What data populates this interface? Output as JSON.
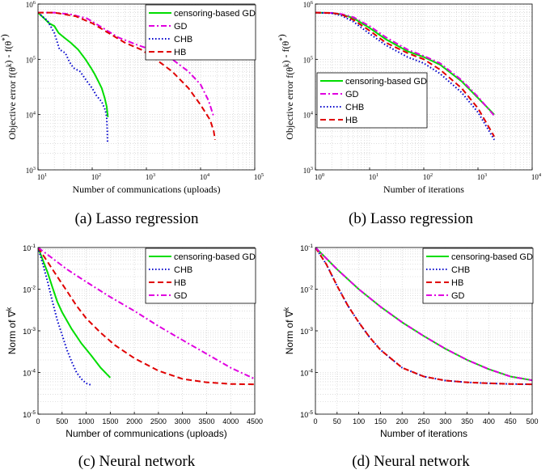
{
  "captions": [
    "(a) Lasso regression",
    "(b) Lasso regression",
    "(c) Neural network",
    "(d) Neural network"
  ],
  "colors": {
    "green": "#00dd00",
    "magenta": "#e000e0",
    "blue": "#0000cc",
    "red": "#e00000"
  },
  "chart_data": [
    {
      "type": "line",
      "caption": "(a) Lasso regression",
      "xscale": "log",
      "yscale": "log",
      "xlim": [
        10,
        100000
      ],
      "ylim": [
        1000,
        1000000
      ],
      "xticks": [
        10,
        100,
        1000,
        10000,
        100000
      ],
      "yticks": [
        1000,
        10000,
        100000,
        1000000
      ],
      "xlabel": "Number of communications (uploads)",
      "ylabel": "Objective error f(θ^k) - f(θ^*)",
      "grid": true,
      "legend_position": "top-right",
      "series": [
        {
          "name": "censoring-based GD",
          "color": "green",
          "dash": "solid",
          "points": [
            [
              10,
              700000
            ],
            [
              13,
              550000
            ],
            [
              16,
              450000
            ],
            [
              20,
              400000
            ],
            [
              24,
              300000
            ],
            [
              30,
              250000
            ],
            [
              40,
              200000
            ],
            [
              55,
              150000
            ],
            [
              75,
              100000
            ],
            [
              95,
              70000
            ],
            [
              110,
              55000
            ],
            [
              130,
              40000
            ],
            [
              150,
              30000
            ],
            [
              170,
              20000
            ],
            [
              185,
              14000
            ],
            [
              192,
              10000
            ],
            [
              195,
              9000
            ]
          ]
        },
        {
          "name": "GD",
          "color": "magenta",
          "dash": "dashdot",
          "points": [
            [
              10,
              700000
            ],
            [
              20,
              700000
            ],
            [
              40,
              650000
            ],
            [
              80,
              550000
            ],
            [
              150,
              380000
            ],
            [
              300,
              250000
            ],
            [
              700,
              180000
            ],
            [
              1500,
              140000
            ],
            [
              3000,
              100000
            ],
            [
              6000,
              60000
            ],
            [
              10000,
              35000
            ],
            [
              14000,
              18000
            ],
            [
              17000,
              10000
            ],
            [
              18000,
              9000
            ]
          ]
        },
        {
          "name": "CHB",
          "color": "blue",
          "dash": "dotted",
          "points": [
            [
              10,
              700000
            ],
            [
              15,
              500000
            ],
            [
              20,
              300000
            ],
            [
              25,
              150000
            ],
            [
              32,
              130000
            ],
            [
              38,
              90000
            ],
            [
              45,
              70000
            ],
            [
              60,
              60000
            ],
            [
              80,
              40000
            ],
            [
              100,
              30000
            ],
            [
              120,
              22000
            ],
            [
              150,
              17000
            ],
            [
              175,
              12000
            ],
            [
              185,
              9000
            ],
            [
              190,
              5000
            ],
            [
              192,
              3000
            ]
          ]
        },
        {
          "name": "HB",
          "color": "red",
          "dash": "dashed",
          "points": [
            [
              10,
              700000
            ],
            [
              20,
              700000
            ],
            [
              50,
              600000
            ],
            [
              100,
              450000
            ],
            [
              200,
              300000
            ],
            [
              400,
              200000
            ],
            [
              800,
              150000
            ],
            [
              1500,
              100000
            ],
            [
              3000,
              60000
            ],
            [
              6000,
              30000
            ],
            [
              10000,
              15000
            ],
            [
              15000,
              8000
            ],
            [
              17500,
              5000
            ],
            [
              18500,
              3500
            ]
          ]
        }
      ]
    },
    {
      "type": "line",
      "caption": "(b) Lasso regression",
      "xscale": "log",
      "yscale": "log",
      "xlim": [
        1,
        10000
      ],
      "ylim": [
        1000,
        1000000
      ],
      "xticks": [
        1,
        10,
        100,
        1000,
        10000
      ],
      "yticks": [
        1000,
        10000,
        100000,
        1000000
      ],
      "xlabel": "Number of iterations",
      "ylabel": "Objective error f(θ^k) - f(θ^*)",
      "grid": true,
      "legend_position": "middle-left",
      "series": [
        {
          "name": "censoring-based GD",
          "color": "green",
          "dash": "solid",
          "points": [
            [
              1,
              700000
            ],
            [
              2,
              690000
            ],
            [
              3,
              650000
            ],
            [
              5,
              560000
            ],
            [
              10,
              370000
            ],
            [
              20,
              230000
            ],
            [
              50,
              140000
            ],
            [
              100,
              110000
            ],
            [
              200,
              80000
            ],
            [
              500,
              40000
            ],
            [
              1000,
              20000
            ],
            [
              2000,
              10000
            ]
          ]
        },
        {
          "name": "GD",
          "color": "magenta",
          "dash": "dashdot",
          "points": [
            [
              1,
              700000
            ],
            [
              2,
              690000
            ],
            [
              3,
              660000
            ],
            [
              5,
              580000
            ],
            [
              10,
              400000
            ],
            [
              20,
              250000
            ],
            [
              50,
              150000
            ],
            [
              100,
              115000
            ],
            [
              200,
              85000
            ],
            [
              500,
              42000
            ],
            [
              1000,
              21000
            ],
            [
              2000,
              9500
            ]
          ]
        },
        {
          "name": "CHB",
          "color": "blue",
          "dash": "dotted",
          "points": [
            [
              1,
              700000
            ],
            [
              2,
              680000
            ],
            [
              3,
              620000
            ],
            [
              5,
              480000
            ],
            [
              10,
              290000
            ],
            [
              20,
              180000
            ],
            [
              50,
              110000
            ],
            [
              100,
              85000
            ],
            [
              200,
              55000
            ],
            [
              500,
              25000
            ],
            [
              1000,
              11000
            ],
            [
              2000,
              3500
            ]
          ]
        },
        {
          "name": "HB",
          "color": "red",
          "dash": "dashed",
          "points": [
            [
              1,
              700000
            ],
            [
              2,
              690000
            ],
            [
              3,
              650000
            ],
            [
              5,
              520000
            ],
            [
              10,
              330000
            ],
            [
              20,
              200000
            ],
            [
              50,
              130000
            ],
            [
              100,
              100000
            ],
            [
              200,
              65000
            ],
            [
              500,
              30000
            ],
            [
              1000,
              13000
            ],
            [
              2000,
              4000
            ]
          ]
        }
      ]
    },
    {
      "type": "line",
      "caption": "(c) Neural network",
      "xscale": "linear",
      "yscale": "log",
      "xlim": [
        0,
        4500
      ],
      "ylim": [
        1e-05,
        0.1
      ],
      "xticks": [
        0,
        500,
        1000,
        1500,
        2000,
        2500,
        3000,
        3500,
        4000,
        4500
      ],
      "yticks": [
        1e-05,
        0.0001,
        0.001,
        0.01,
        0.1
      ],
      "xlabel": "Number of communications (uploads)",
      "ylabel": "Norm of ∇^k",
      "grid": true,
      "legend_position": "top-right",
      "series": [
        {
          "name": "censoring-based GD",
          "color": "green",
          "dash": "solid",
          "points": [
            [
              0,
              0.1
            ],
            [
              100,
              0.05
            ],
            [
              200,
              0.025
            ],
            [
              300,
              0.011
            ],
            [
              400,
              0.005
            ],
            [
              500,
              0.0028
            ],
            [
              700,
              0.0011
            ],
            [
              900,
              0.0005
            ],
            [
              1100,
              0.00026
            ],
            [
              1300,
              0.00013
            ],
            [
              1500,
              7.5e-05
            ]
          ]
        },
        {
          "name": "CHB",
          "color": "blue",
          "dash": "dotted",
          "points": [
            [
              0,
              0.1
            ],
            [
              100,
              0.04
            ],
            [
              200,
              0.015
            ],
            [
              300,
              0.005
            ],
            [
              400,
              0.0018
            ],
            [
              500,
              0.0008
            ],
            [
              600,
              0.00035
            ],
            [
              700,
              0.00018
            ],
            [
              800,
              0.0001
            ],
            [
              900,
              7e-05
            ],
            [
              1000,
              5.5e-05
            ],
            [
              1100,
              5e-05
            ]
          ]
        },
        {
          "name": "HB",
          "color": "red",
          "dash": "dashed",
          "points": [
            [
              0,
              0.1
            ],
            [
              200,
              0.045
            ],
            [
              400,
              0.02
            ],
            [
              600,
              0.009
            ],
            [
              800,
              0.004
            ],
            [
              1000,
              0.002
            ],
            [
              1300,
              0.0009
            ],
            [
              1600,
              0.00045
            ],
            [
              2000,
              0.00022
            ],
            [
              2500,
              0.00011
            ],
            [
              3000,
              7e-05
            ],
            [
              3500,
              5.8e-05
            ],
            [
              4000,
              5.3e-05
            ],
            [
              4500,
              5.2e-05
            ]
          ]
        },
        {
          "name": "GD",
          "color": "magenta",
          "dash": "dashdot",
          "points": [
            [
              0,
              0.1
            ],
            [
              300,
              0.055
            ],
            [
              600,
              0.03
            ],
            [
              1000,
              0.015
            ],
            [
              1500,
              0.0065
            ],
            [
              2000,
              0.003
            ],
            [
              2500,
              0.0013
            ],
            [
              3000,
              0.0006
            ],
            [
              3500,
              0.00028
            ],
            [
              4000,
              0.00013
            ],
            [
              4500,
              7e-05
            ]
          ]
        }
      ]
    },
    {
      "type": "line",
      "caption": "(d) Neural network",
      "xscale": "linear",
      "yscale": "log",
      "xlim": [
        0,
        500
      ],
      "ylim": [
        1e-05,
        0.1
      ],
      "xticks": [
        0,
        50,
        100,
        150,
        200,
        250,
        300,
        350,
        400,
        450,
        500
      ],
      "yticks": [
        1e-05,
        0.0001,
        0.001,
        0.01,
        0.1
      ],
      "xlabel": "Number of iterations",
      "ylabel": "Norm of ∇^k",
      "grid": true,
      "legend_position": "top-right",
      "series": [
        {
          "name": "censoring-based GD",
          "color": "green",
          "dash": "solid",
          "points": [
            [
              0,
              0.1
            ],
            [
              25,
              0.055
            ],
            [
              50,
              0.03
            ],
            [
              100,
              0.01
            ],
            [
              150,
              0.0038
            ],
            [
              200,
              0.0016
            ],
            [
              250,
              0.00075
            ],
            [
              300,
              0.00037
            ],
            [
              350,
              0.0002
            ],
            [
              400,
              0.00012
            ],
            [
              450,
              8e-05
            ],
            [
              500,
              6.5e-05
            ]
          ]
        },
        {
          "name": "CHB",
          "color": "blue",
          "dash": "dotted",
          "points": [
            [
              0,
              0.1
            ],
            [
              25,
              0.04
            ],
            [
              50,
              0.012
            ],
            [
              75,
              0.004
            ],
            [
              100,
              0.0016
            ],
            [
              125,
              0.0007
            ],
            [
              150,
              0.00035
            ],
            [
              200,
              0.00013
            ],
            [
              250,
              8e-05
            ],
            [
              300,
              6.4e-05
            ],
            [
              350,
              5.8e-05
            ],
            [
              400,
              5.5e-05
            ],
            [
              450,
              5.3e-05
            ],
            [
              500,
              5.2e-05
            ]
          ]
        },
        {
          "name": "HB",
          "color": "red",
          "dash": "dashed",
          "points": [
            [
              0,
              0.1
            ],
            [
              25,
              0.04
            ],
            [
              50,
              0.012
            ],
            [
              75,
              0.004
            ],
            [
              100,
              0.0016
            ],
            [
              125,
              0.0007
            ],
            [
              150,
              0.00035
            ],
            [
              200,
              0.00013
            ],
            [
              250,
              8e-05
            ],
            [
              300,
              6.4e-05
            ],
            [
              350,
              5.8e-05
            ],
            [
              400,
              5.5e-05
            ],
            [
              450,
              5.3e-05
            ],
            [
              500,
              5.2e-05
            ]
          ]
        },
        {
          "name": "GD",
          "color": "magenta",
          "dash": "dashdot",
          "points": [
            [
              0,
              0.1
            ],
            [
              25,
              0.055
            ],
            [
              50,
              0.03
            ],
            [
              100,
              0.01
            ],
            [
              150,
              0.0038
            ],
            [
              200,
              0.0016
            ],
            [
              250,
              0.00075
            ],
            [
              300,
              0.00037
            ],
            [
              350,
              0.0002
            ],
            [
              400,
              0.00012
            ],
            [
              450,
              8e-05
            ],
            [
              500,
              6.5e-05
            ]
          ]
        }
      ]
    }
  ]
}
